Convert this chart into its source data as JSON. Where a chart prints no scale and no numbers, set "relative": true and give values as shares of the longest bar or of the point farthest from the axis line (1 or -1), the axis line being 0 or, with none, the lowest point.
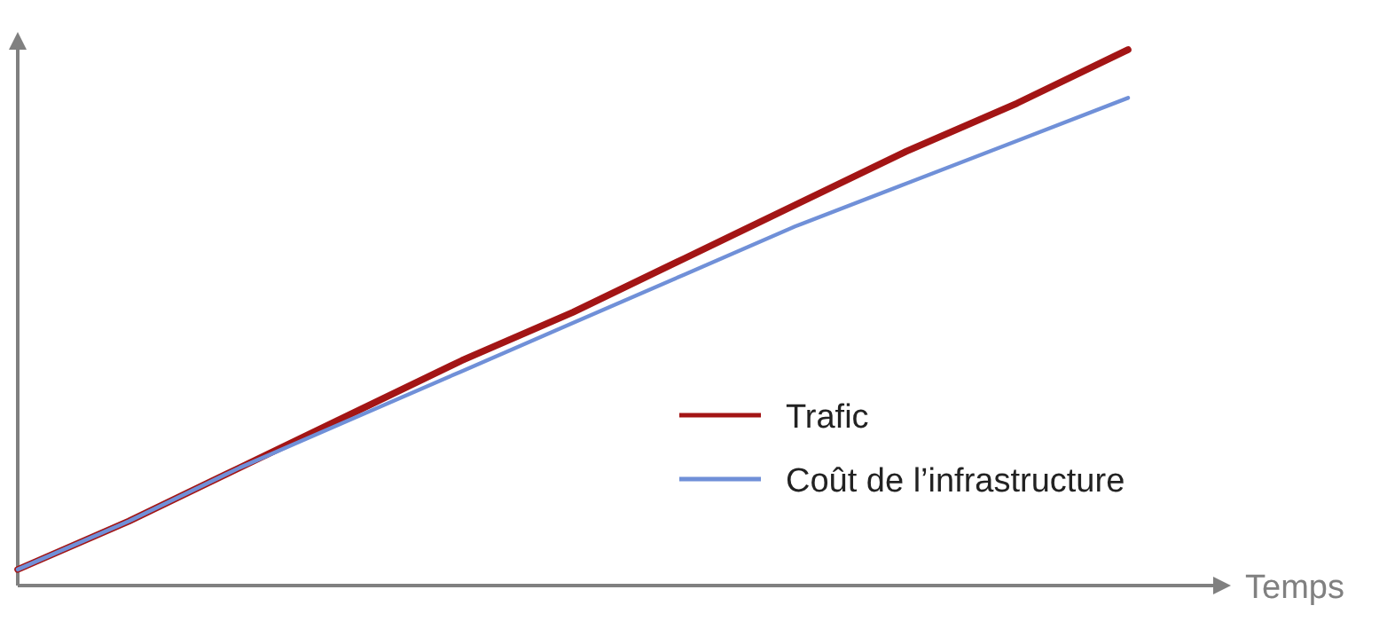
{
  "chart_data": {
    "type": "line",
    "relative": true,
    "xlabel": "Temps",
    "categories": [
      null,
      null,
      null,
      null,
      null,
      null,
      null,
      null,
      null,
      null,
      null
    ],
    "series": [
      {
        "name": "Trafic",
        "color": "#a31515",
        "values": [
          0.03,
          0.12,
          0.22,
          0.32,
          0.42,
          0.51,
          0.61,
          0.71,
          0.81,
          0.9,
          1.0
        ]
      },
      {
        "name": "Coût de l’infrastructure",
        "color": "#7090d8",
        "values": [
          0.03,
          0.12,
          0.22,
          0.31,
          0.4,
          0.49,
          0.58,
          0.67,
          0.75,
          0.83,
          0.91
        ]
      }
    ],
    "legend": "bottom right"
  }
}
